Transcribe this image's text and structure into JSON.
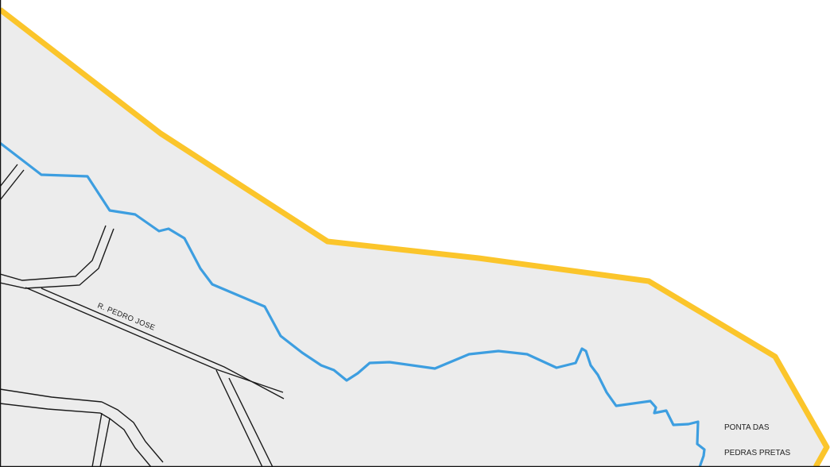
{
  "map": {
    "colors": {
      "land": "#ececec",
      "water": "#ffffff",
      "boundary": "#fbc52b",
      "river": "#3d9ee0",
      "road": "#1a1a1a"
    },
    "streets": [
      {
        "name": "R. PEDRO JOSE"
      }
    ],
    "places": [
      {
        "line1": "PONTA DAS",
        "line2": "PEDRAS PRETAS"
      }
    ]
  }
}
